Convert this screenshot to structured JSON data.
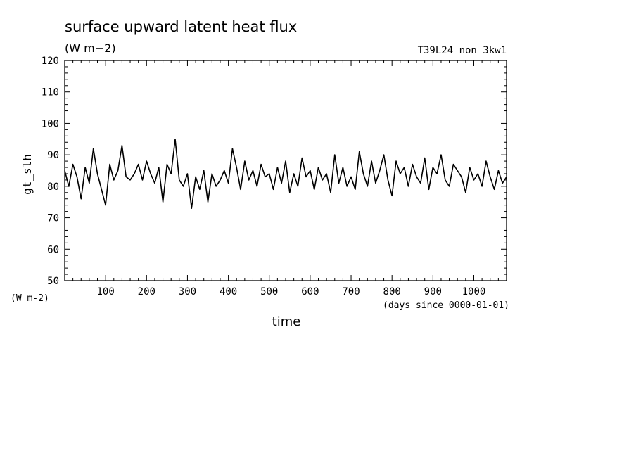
{
  "chart_data": {
    "type": "line",
    "title": "surface upward latent heat flux",
    "units": "(W m−2)",
    "run_label": "T39L24_non_3kw1",
    "ylabel": "gt_slh",
    "y_unit_label": "(W m-2)",
    "xlabel": "time",
    "x_unit_label": "(days since 0000-01-01)",
    "xlim": [
      0,
      1080
    ],
    "ylim": [
      50,
      120
    ],
    "x_ticks": [
      100,
      200,
      300,
      400,
      500,
      600,
      700,
      800,
      900,
      1000
    ],
    "y_ticks": [
      50,
      60,
      70,
      80,
      90,
      100,
      110,
      120
    ],
    "series": [
      {
        "x": [
          0,
          10,
          20,
          30,
          40,
          50,
          60,
          70,
          80,
          90,
          100,
          110,
          120,
          130,
          140,
          150,
          160,
          170,
          180,
          190,
          200,
          210,
          220,
          230,
          240,
          250,
          260,
          270,
          280,
          290,
          300,
          310,
          320,
          330,
          340,
          350,
          360,
          370,
          380,
          390,
          400,
          410,
          420,
          430,
          440,
          450,
          460,
          470,
          480,
          490,
          500,
          510,
          520,
          530,
          540,
          550,
          560,
          570,
          580,
          590,
          600,
          610,
          620,
          630,
          640,
          650,
          660,
          670,
          680,
          690,
          700,
          710,
          720,
          730,
          740,
          750,
          760,
          770,
          780,
          790,
          800,
          810,
          820,
          830,
          840,
          850,
          860,
          870,
          880,
          890,
          900,
          910,
          920,
          930,
          940,
          950,
          960,
          970,
          980,
          990,
          1000,
          1010,
          1020,
          1030,
          1040,
          1050,
          1060,
          1070,
          1080
        ],
        "values": [
          85,
          80,
          87,
          83,
          76,
          86,
          81,
          92,
          84,
          79,
          74,
          87,
          82,
          85,
          93,
          83,
          82,
          84,
          87,
          82,
          88,
          84,
          81,
          86,
          75,
          87,
          84,
          95,
          82,
          80,
          84,
          73,
          83,
          79,
          85,
          75,
          84,
          80,
          82,
          85,
          81,
          92,
          86,
          79,
          88,
          82,
          85,
          80,
          87,
          83,
          84,
          79,
          86,
          81,
          88,
          78,
          84,
          80,
          89,
          83,
          85,
          79,
          86,
          82,
          84,
          78,
          90,
          81,
          86,
          80,
          83,
          79,
          91,
          84,
          80,
          88,
          81,
          85,
          90,
          82,
          77,
          88,
          84,
          86,
          80,
          87,
          83,
          81,
          89,
          79,
          86,
          84,
          90,
          82,
          80,
          87,
          85,
          83,
          78,
          86,
          82,
          84,
          80,
          88,
          83,
          79,
          85,
          81,
          83
        ]
      }
    ]
  }
}
